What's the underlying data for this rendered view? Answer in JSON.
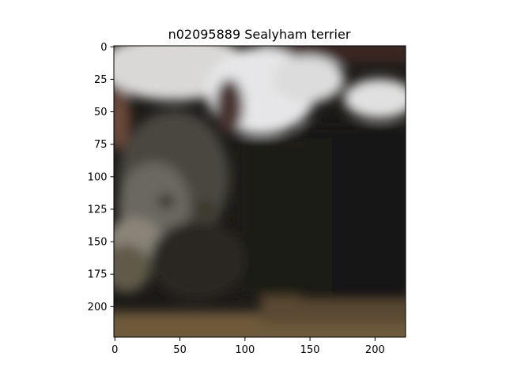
{
  "figure": {
    "title": "n02095889 Sealyham terrier",
    "image_description": "blurry low-resolution photo of a dark tabby cat lying down on a wooden floor, white blanket in the upper background"
  },
  "axes": {
    "x_ticks": [
      "0",
      "50",
      "100",
      "150",
      "200"
    ],
    "y_ticks": [
      "0",
      "25",
      "50",
      "75",
      "100",
      "125",
      "150",
      "175",
      "200"
    ],
    "x_range": [
      0,
      224
    ],
    "y_range": [
      0,
      224
    ]
  },
  "colors": {
    "background": "#ffffff",
    "axis": "#000000"
  }
}
